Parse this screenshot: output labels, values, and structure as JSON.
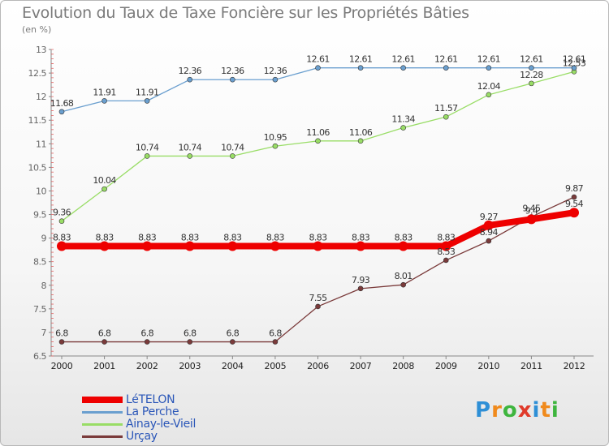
{
  "header": {
    "title": "Evolution du Taux de Taxe Foncière sur les Propriétés Bâties",
    "subtitle": "(en %)"
  },
  "logo": {
    "letters": [
      "P",
      "r",
      "o",
      "x",
      "i",
      "t",
      "i"
    ],
    "colors": [
      "#2e8fd6",
      "#f08a1c",
      "#3eb53e",
      "#e03a2a",
      "#2e8fd6",
      "#f08a1c",
      "#3eb53e"
    ]
  },
  "chart_data": {
    "type": "line",
    "title": "Evolution du Taux de Taxe Foncière sur les Propriétés Bâties",
    "subtitle": "(en %)",
    "xlabel": "",
    "ylabel": "",
    "x": [
      "2000",
      "2001",
      "2002",
      "2003",
      "2004",
      "2005",
      "2006",
      "2007",
      "2008",
      "2009",
      "2010",
      "2011",
      "2012"
    ],
    "ylim": [
      6.5,
      13
    ],
    "yticks": [
      "6.5",
      "7",
      "7.5",
      "8",
      "8.5",
      "9",
      "9.5",
      "10",
      "10.5",
      "11",
      "11.5",
      "12",
      "12.5",
      "13"
    ],
    "grid": false,
    "legend_position": "bottom-left",
    "series": [
      {
        "name": "LéTELON",
        "color": "#ee0000",
        "values": [
          8.83,
          8.83,
          8.83,
          8.83,
          8.83,
          8.83,
          8.83,
          8.83,
          8.83,
          8.83,
          9.27,
          9.4,
          9.54
        ],
        "labels": [
          "8.83",
          "8.83",
          "8.83",
          "8.83",
          "8.83",
          "8.83",
          "8.83",
          "8.83",
          "8.83",
          "8.83",
          "9.27",
          "9.4",
          "9.54"
        ]
      },
      {
        "name": "La Perche",
        "color": "#6a9fcf",
        "values": [
          11.68,
          11.91,
          11.91,
          12.36,
          12.36,
          12.36,
          12.61,
          12.61,
          12.61,
          12.61,
          12.61,
          12.61,
          12.61
        ],
        "labels": [
          "11.68",
          "11.91",
          "11.91",
          "12.36",
          "12.36",
          "12.36",
          "12.61",
          "12.61",
          "12.61",
          "12.61",
          "12.61",
          "12.61",
          "12.61"
        ]
      },
      {
        "name": "Ainay-le-Vieil",
        "color": "#99dd66",
        "values": [
          9.36,
          10.04,
          10.74,
          10.74,
          10.74,
          10.95,
          11.06,
          11.06,
          11.34,
          11.57,
          12.04,
          12.28,
          12.53
        ],
        "labels": [
          "9.36",
          "10.04",
          "10.74",
          "10.74",
          "10.74",
          "10.95",
          "11.06",
          "11.06",
          "11.34",
          "11.57",
          "12.04",
          "12.28",
          "12.53"
        ]
      },
      {
        "name": "Urçay",
        "color": "#7a3a3a",
        "values": [
          6.8,
          6.8,
          6.8,
          6.8,
          6.8,
          6.8,
          7.55,
          7.93,
          8.01,
          8.53,
          8.94,
          9.45,
          9.87
        ],
        "labels": [
          "6.8",
          "6.8",
          "6.8",
          "6.8",
          "6.8",
          "6.8",
          "7.55",
          "7.93",
          "8.01",
          "8.53",
          "8.94",
          "9.45",
          "9.87"
        ]
      }
    ]
  }
}
